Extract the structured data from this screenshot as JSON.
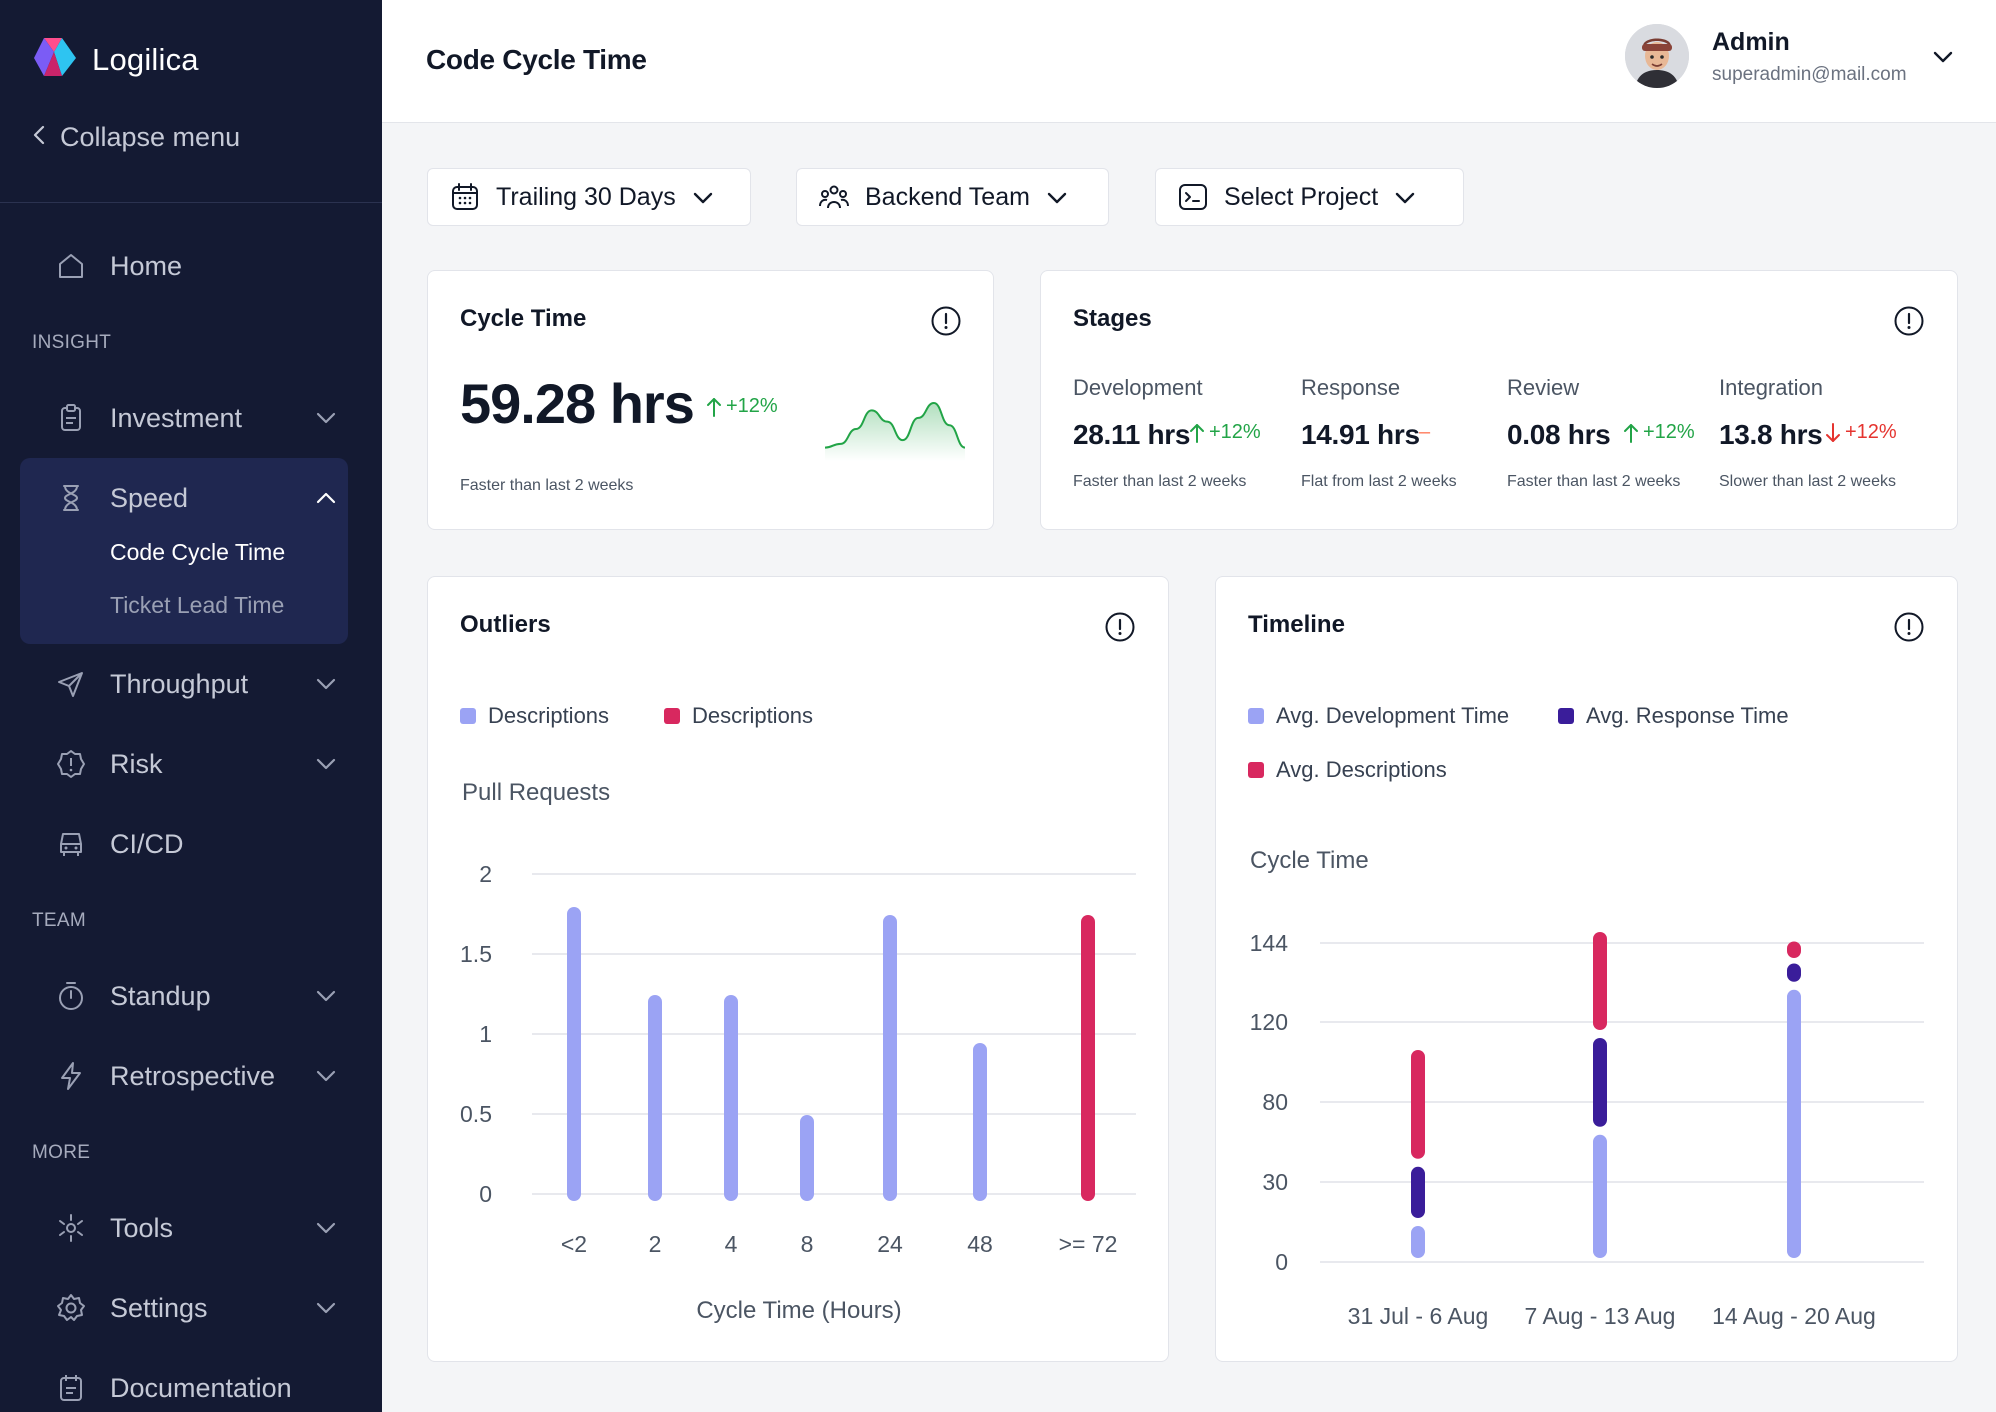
{
  "sidebar": {
    "brand": "Logilica",
    "collapse_label": "Collapse menu",
    "home": "Home",
    "sections": {
      "insight": "INSIGHT",
      "team": "TEAM",
      "more": "MORE"
    },
    "investment": "Investment",
    "speed": "Speed",
    "speed_sub": [
      "Code Cycle Time",
      "Ticket Lead Time"
    ],
    "throughput": "Throughput",
    "risk": "Risk",
    "cicd": "CI/CD",
    "standup": "Standup",
    "retrospective": "Retrospective",
    "tools": "Tools",
    "settings": "Settings",
    "documentation": "Documentation"
  },
  "header": {
    "title": "Code Cycle Time",
    "user_name": "Admin",
    "user_email": "superadmin@mail.com"
  },
  "filters": {
    "date_range": "Trailing 30 Days",
    "team": "Backend Team",
    "project": "Select Project"
  },
  "cycle_time": {
    "title": "Cycle Time",
    "value": "59.28 hrs",
    "delta": "+12%",
    "note": "Faster than last 2 weeks"
  },
  "stages": {
    "title": "Stages",
    "items": [
      {
        "label": "Development",
        "value": "28.11 hrs",
        "delta": "+12%",
        "trend": "up",
        "note": "Faster than last 2 weeks"
      },
      {
        "label": "Response",
        "value": "14.91 hrs",
        "delta": "–",
        "trend": "flat",
        "note": "Flat from last 2 weeks"
      },
      {
        "label": "Review",
        "value": "0.08 hrs",
        "delta": "+12%",
        "trend": "up",
        "note": "Faster than last 2 weeks"
      },
      {
        "label": "Integration",
        "value": "13.8 hrs",
        "delta": "+12%",
        "trend": "down",
        "note": "Slower than last 2 weeks"
      }
    ]
  },
  "outliers": {
    "title": "Outliers",
    "legend": [
      "Descriptions",
      "Descriptions"
    ],
    "y_title": "Pull Requests",
    "x_title": "Cycle Time (Hours)"
  },
  "timeline": {
    "title": "Timeline",
    "legend": [
      "Avg. Development Time",
      "Avg. Response Time",
      "Avg. Descriptions"
    ],
    "y_title": "Cycle Time"
  },
  "colors": {
    "sidebar_bg": "#141a33",
    "periwinkle": "#9ba3f4",
    "indigo": "#3a1d9a",
    "crimson": "#d8285f",
    "green": "#22a447",
    "red": "#e5342f"
  },
  "chart_data": [
    {
      "type": "bar",
      "title": "Outliers",
      "ylabel": "Pull Requests",
      "xlabel": "Cycle Time (Hours)",
      "categories": [
        "<2",
        "2",
        "4",
        "8",
        "24",
        "48",
        ">= 72"
      ],
      "values": [
        1.75,
        1.2,
        1.2,
        0.45,
        1.7,
        0.9,
        1.7
      ],
      "bar_colors": [
        "#9ba3f4",
        "#9ba3f4",
        "#9ba3f4",
        "#9ba3f4",
        "#9ba3f4",
        "#9ba3f4",
        "#d8285f"
      ],
      "yticks": [
        "0",
        "0.5",
        "1",
        "1.5",
        "2"
      ],
      "ylim": [
        0,
        2
      ],
      "grid": true
    },
    {
      "type": "bar",
      "stacked": true,
      "title": "Timeline",
      "ylabel": "Cycle Time",
      "categories": [
        "31 Jul - 6 Aug",
        "7 Aug - 13 Aug",
        "14 Aug - 20 Aug"
      ],
      "yticks": [
        "0",
        "30",
        "80",
        "120",
        "144"
      ],
      "tick_values": [
        0,
        30,
        80,
        120,
        144
      ],
      "series": [
        {
          "name": "Avg. Development Time",
          "color": "#9ba3f4",
          "values": [
            15,
            62,
            131
          ]
        },
        {
          "name": "Avg. Response Time",
          "color": "#3a1d9a",
          "values": [
            27,
            52,
            8
          ]
        },
        {
          "name": "Avg. Descriptions",
          "color": "#d8285f",
          "values": [
            66,
            35,
            6
          ]
        }
      ],
      "grid": true
    },
    {
      "type": "area",
      "title": "Cycle Time",
      "values": [
        2,
        3,
        7,
        12,
        9,
        4,
        10,
        14,
        8,
        2
      ]
    }
  ]
}
